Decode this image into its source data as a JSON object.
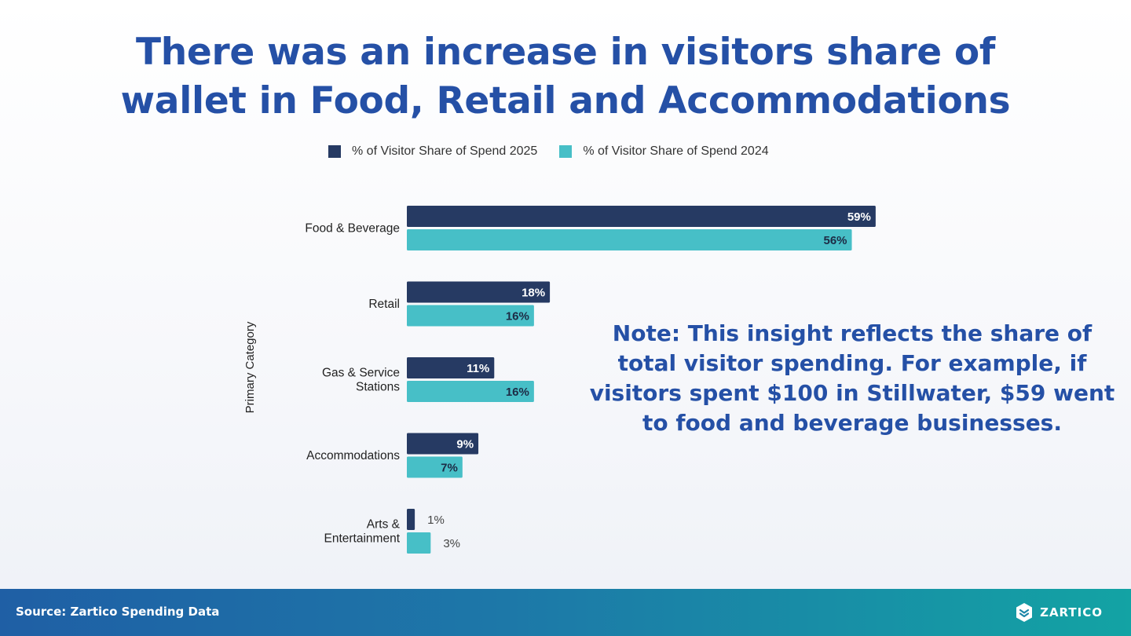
{
  "slide": {
    "title_lines": [
      "There was an increase in visitors share of",
      "wallet in Food, Retail and Accommodations"
    ],
    "note": "Note: This insight reflects the share of total visitor spending. For example, if visitors spent $100 in Stillwater, $59 went to food and beverage businesses."
  },
  "footer": {
    "source": "Source: Zartico Spending Data",
    "logo_text": "ZARTICO"
  },
  "colors": {
    "series_2025": "#263a63",
    "series_2024": "#47bfc7",
    "title": "#2550a6",
    "footer_start": "#1f5fa5",
    "footer_end": "#13a3a4"
  },
  "chart_data": {
    "type": "bar",
    "orientation": "horizontal",
    "title": "",
    "ylabel": "Primary Category",
    "xlabel": "",
    "legend_position": "top",
    "grid": false,
    "categories": [
      [
        "Food & Beverage"
      ],
      [
        "Retail"
      ],
      [
        "Gas & Service",
        "Stations"
      ],
      [
        "Accommodations"
      ],
      [
        "Arts &",
        "Entertainment"
      ]
    ],
    "series": [
      {
        "name": "% of Visitor Share of Spend 2025",
        "values": [
          59,
          18,
          11,
          9,
          1
        ],
        "labels": [
          "59%",
          "18%",
          "11%",
          "9%",
          "1%"
        ]
      },
      {
        "name": "% of Visitor Share of Spend 2024",
        "values": [
          56,
          16,
          16,
          7,
          3
        ],
        "labels": [
          "56%",
          "16%",
          "16%",
          "7%",
          "3%"
        ]
      }
    ],
    "xlim": [
      0,
      60
    ],
    "value_unit": "%"
  }
}
